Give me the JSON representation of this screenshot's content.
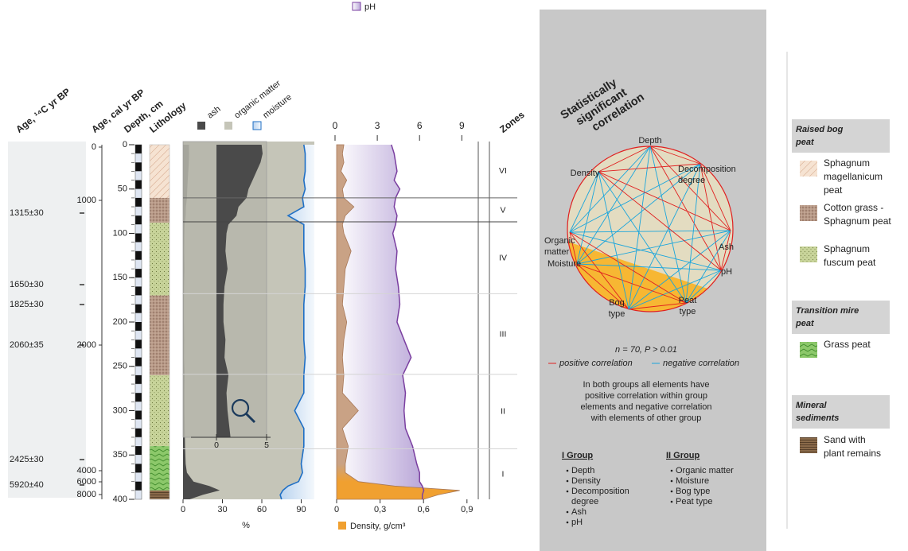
{
  "headers": {
    "age_c14": "Age, ¹⁴C yr BP",
    "age_cal": "Age, cal yr BP",
    "depth": "Depth, cm",
    "lithology": "Lithology",
    "zones": "Zones"
  },
  "age_c14": {
    "labels": [
      "1315±30",
      "1650±30",
      "1825±30",
      "2060±35",
      "2425±30",
      "5920±40"
    ]
  },
  "age_cal": {
    "ticks": [
      0,
      1000,
      2000,
      4000,
      6000,
      8000
    ]
  },
  "depth": {
    "ylim": [
      0,
      400
    ],
    "ticks": [
      0,
      50,
      100,
      150,
      200,
      250,
      300,
      350,
      400
    ]
  },
  "loss": {
    "legend": [
      "ash",
      "organic matter",
      "moisture"
    ],
    "xlabel": "%",
    "xlim": [
      0,
      100
    ],
    "xticks": [
      0,
      30,
      60,
      90
    ],
    "inset_xlim": [
      0,
      5
    ],
    "inset_xticks": [
      0,
      5
    ],
    "colors": {
      "ash": "#4a4a4a",
      "organic": "#c5c5b8",
      "moisture": "#1f6fc5"
    }
  },
  "profile": {
    "depth": [
      0,
      10,
      20,
      30,
      40,
      50,
      60,
      70,
      80,
      90,
      100,
      120,
      140,
      160,
      180,
      200,
      220,
      240,
      260,
      280,
      300,
      320,
      340,
      360,
      370,
      380,
      385,
      390,
      395,
      400
    ],
    "ash": [
      4.5,
      4.6,
      4.4,
      4.0,
      3.6,
      3.2,
      3.0,
      2.2,
      2.0,
      1.2,
      1.0,
      0.9,
      1.1,
      0.8,
      0.7,
      0.7,
      0.9,
      0.8,
      1.2,
      1.0,
      1.1,
      1.3,
      1.5,
      2.0,
      3,
      8,
      20,
      28,
      15,
      5
    ],
    "moisture": [
      92,
      93,
      93,
      93,
      92,
      93,
      91,
      92,
      80,
      92,
      92,
      92,
      93,
      93,
      92,
      92,
      92,
      93,
      92,
      92,
      85,
      92,
      92,
      90,
      91,
      88,
      80,
      76,
      74,
      75
    ],
    "ph": [
      4.0,
      4.2,
      4.3,
      4.4,
      4.2,
      4.6,
      4.3,
      4.2,
      4.4,
      4.3,
      4.1,
      4.4,
      4.3,
      4.5,
      4.6,
      4.4,
      4.9,
      5.4,
      4.8,
      5.0,
      4.9,
      5.0,
      5.5,
      5.8,
      6.0,
      6.0,
      6.2,
      6.3,
      6.2,
      6.2
    ],
    "density": [
      0.05,
      0.04,
      0.05,
      0.03,
      0.07,
      0.04,
      0.05,
      0.12,
      0.06,
      0.04,
      0.05,
      0.1,
      0.06,
      0.05,
      0.04,
      0.07,
      0.05,
      0.04,
      0.05,
      0.04,
      0.15,
      0.04,
      0.08,
      0.06,
      0.06,
      0.15,
      0.4,
      0.85,
      0.7,
      0.6
    ]
  },
  "chem": {
    "ph_label": "pH",
    "ph_xlim": [
      0,
      10
    ],
    "ph_xticks": [
      0,
      3,
      6,
      9
    ],
    "ph_color": "#7a3fa0",
    "density_label": "Density, g/cm³",
    "density_xlim": [
      0,
      1
    ],
    "density_xticks": [
      0,
      {
        "value": 0.3,
        "label": "0,3"
      },
      {
        "value": 0.6,
        "label": "0,6"
      },
      {
        "value": 0.9,
        "label": "0,9"
      }
    ],
    "density_color": "#c9a285"
  },
  "zones": {
    "labels": [
      "VI",
      "V",
      "IV",
      "III",
      "II",
      "I"
    ]
  },
  "correlation": {
    "title": [
      "Statistically",
      "significant",
      "correlation"
    ],
    "nodes": [
      [
        "Depth"
      ],
      [
        "Decomposition",
        "degree"
      ],
      [
        "Ash"
      ],
      [
        "pH"
      ],
      [
        "Peat",
        "type"
      ],
      [
        "Bog",
        "type"
      ],
      [
        "Moisture"
      ],
      [
        "Organic",
        "matter"
      ],
      [
        "Density"
      ]
    ],
    "stats": "n = 70, P > 0.01",
    "positive": "positive correlation",
    "negative": "negative correlation",
    "note": [
      "In both groups all elements have",
      "positive correlation within group",
      "elements and negative correlation",
      "with elements of other group"
    ],
    "group1": {
      "title": "I Group",
      "items": [
        [
          "Depth"
        ],
        [
          "Density"
        ],
        [
          "Decomposition",
          "degree"
        ],
        [
          "Ash"
        ],
        [
          "pH"
        ]
      ]
    },
    "group2": {
      "title": "II Group",
      "items": [
        [
          "Organic matter"
        ],
        [
          "Moisture"
        ],
        [
          "Bog type"
        ],
        [
          "Peat type"
        ]
      ]
    }
  },
  "legend": [
    {
      "heading": [
        "Raised bog",
        "peat"
      ],
      "items": [
        [
          "Sphagnum",
          "magellanicum",
          "peat"
        ],
        [
          "Cotton grass -",
          "Sphagnum peat"
        ],
        [
          "Sphagnum",
          "fuscum peat"
        ]
      ]
    },
    {
      "heading": [
        "Transition mire",
        "peat"
      ],
      "items": [
        [
          "Grass peat"
        ]
      ]
    },
    {
      "heading": [
        "Mineral",
        "sediments"
      ],
      "items": [
        [
          "Sand with",
          "plant remains"
        ]
      ]
    }
  ]
}
